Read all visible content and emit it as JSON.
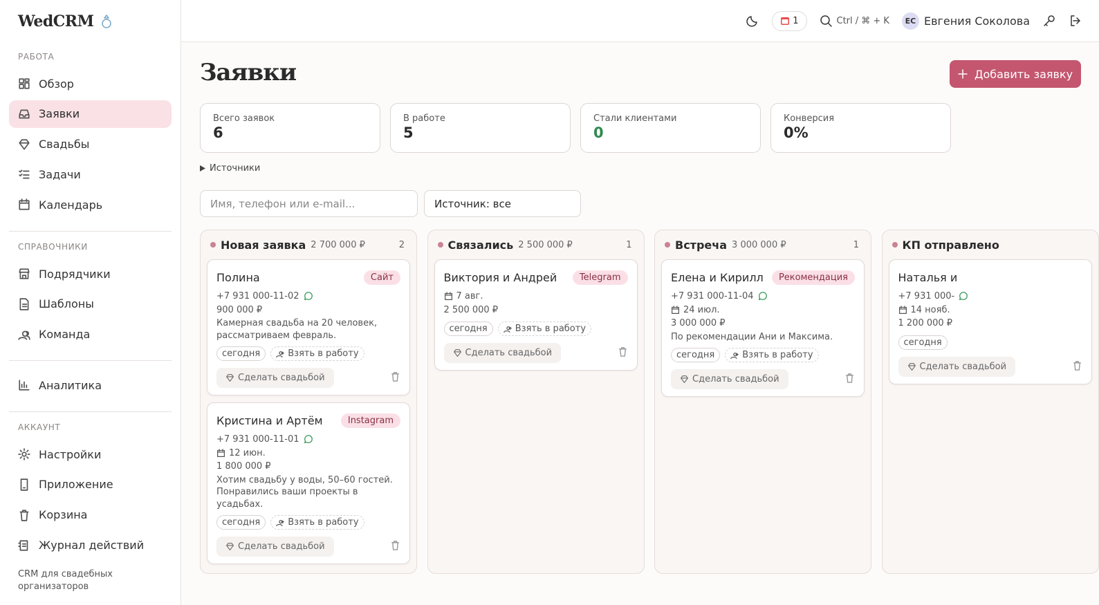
{
  "brand": "WedCRM",
  "nav": [
    {
      "title": "РАБОТА",
      "items": [
        "Обзор",
        "Заявки",
        "Свадьбы",
        "Задачи",
        "Календарь"
      ]
    },
    {
      "title": "СПРАВОЧНИКИ",
      "items": [
        "Подрядчики",
        "Шаблоны",
        "Команда"
      ]
    },
    {
      "items": [
        "Аналитика"
      ]
    },
    {
      "title": "АККАУНТ",
      "items": [
        "Настройки",
        "Приложение",
        "Корзина",
        "Журнал действий"
      ]
    }
  ],
  "active_item": "Заявки",
  "footer": "CRM для свадебных организаторов",
  "topbar": {
    "events_count": 1,
    "search_hint": "Ctrl / ⌘ + K",
    "initials": "ЕС",
    "user": "Евгения Соколова"
  },
  "header": {
    "title": "Заявки",
    "button": "Добавить заявку"
  },
  "stats": [
    {
      "label": "Всего заявок",
      "value": 6
    },
    {
      "label": "В работе",
      "value": 5
    },
    {
      "label": "Стали клиентами",
      "value": 0
    },
    {
      "label": "Конверсия",
      "value": "0%"
    }
  ],
  "sources_toggle": "Источники",
  "filters": {
    "search_placeholder": "Имя, телефон или e-mail...",
    "source_select": "Источник: все"
  },
  "columns": [
    {
      "name": "Новая заявка",
      "total": "2 700 000 ₽",
      "count": 2,
      "cards": [
        {
          "name": "Полина",
          "source": "Сайт",
          "phone": "+7 931 000-11-02",
          "budget": "900 000 ₽",
          "note": "Камерная свадьба на 20 человек, рассматриваем февраль.",
          "chips": [
            "сегодня",
            "Взять в работу"
          ],
          "action": "Сделать свадьбой"
        },
        {
          "name": "Кристина и Артём",
          "source": "Instagram",
          "phone": "+7 931 000-11-01",
          "date": "12 июн.",
          "budget": "1 800 000 ₽",
          "note": "Хотим свадьбу у воды, 50–60 гостей. Понравились ваши проекты в усадьбах.",
          "chips": [
            "сегодня",
            "Взять в работу"
          ],
          "action": "Сделать свадьбой"
        }
      ]
    },
    {
      "name": "Связались",
      "total": "2 500 000 ₽",
      "count": 1,
      "cards": [
        {
          "name": "Виктория и Андрей",
          "source": "Telegram",
          "date": "7 авг.",
          "budget": "2 500 000 ₽",
          "chips": [
            "сегодня",
            "Взять в работу"
          ],
          "action": "Сделать свадьбой"
        }
      ]
    },
    {
      "name": "Встреча",
      "total": "3 000 000 ₽",
      "count": 1,
      "cards": [
        {
          "name": "Елена и Кирилл",
          "source": "Рекомендация",
          "phone": "+7 931 000-11-04",
          "date": "24 июл.",
          "budget": "3 000 000 ₽",
          "note": "По рекомендации Ани и Максима.",
          "chips": [
            "сегодня",
            "Взять в работу"
          ],
          "action": "Сделать свадьбой"
        }
      ]
    },
    {
      "name": "КП отправлено",
      "cards": [
        {
          "name": "Наталья и",
          "phone": "+7 931 000-",
          "date": "14 нояб.",
          "budget": "1 200 000 ₽",
          "chips": [
            "сегодня"
          ],
          "action": "Сделать свадьбой"
        }
      ]
    }
  ]
}
